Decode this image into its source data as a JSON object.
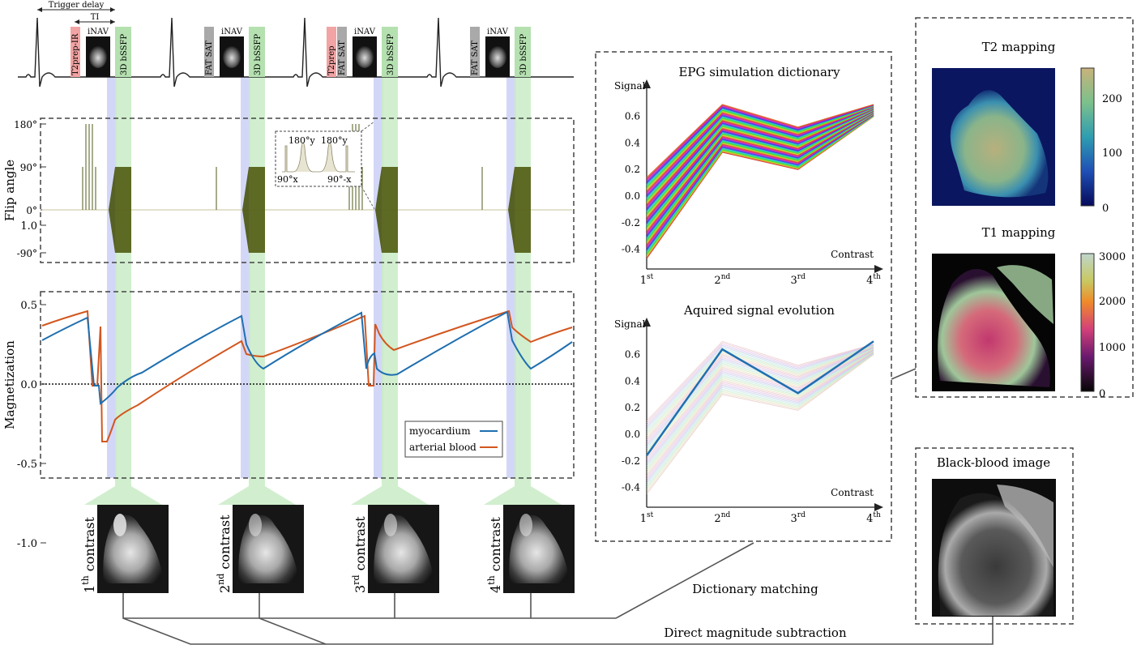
{
  "colors": {
    "myocardium": "#1f6fb0",
    "arterial_blood": "#d2571f",
    "t2prep": "#f2a3a3",
    "fatsat": "#a9a9a9",
    "bssfp": "#b5e0b0",
    "inav": "#111111",
    "rf_pulse": "#4f5b18",
    "blue_band": "#c8cdf5",
    "green_band": "#c9ecc5"
  },
  "sequence": {
    "trigger_delay_label": "Trigger delay",
    "ti_label": "TI",
    "beats": [
      {
        "prep_blocks": [
          {
            "label": "T2prep-IR",
            "kind": "t2prep"
          }
        ],
        "inav": "iNAV",
        "readout": "3D bSSFP"
      },
      {
        "prep_blocks": [
          {
            "label": "FAT SAT",
            "kind": "fatsat"
          }
        ],
        "inav": "iNAV",
        "readout": "3D bSSFP"
      },
      {
        "prep_blocks": [
          {
            "label": "T2prep",
            "kind": "t2prep"
          },
          {
            "label": "FAT SAT",
            "kind": "fatsat"
          }
        ],
        "inav": "iNAV",
        "readout": "3D bSSFP"
      },
      {
        "prep_blocks": [
          {
            "label": "FAT SAT",
            "kind": "fatsat"
          }
        ],
        "inav": "iNAV",
        "readout": "3D bSSFP"
      }
    ]
  },
  "flip_panel": {
    "ylabel": "Flip angle",
    "ticks": [
      "180°",
      "90°",
      "0°",
      "-90°"
    ],
    "inset": {
      "y1": "180°y",
      "y2": "180°y",
      "x1": "90°x",
      "x2": "90°-x"
    }
  },
  "magnetization_panel": {
    "ylabel": "Magnetization",
    "ticks": [
      "1.0",
      "0.5",
      "0.0",
      "-0.5",
      "-1.0"
    ],
    "legend": [
      "myocardium",
      "arterial blood"
    ]
  },
  "contrast_images": [
    {
      "num": "1",
      "sup": "th",
      "word": "contrast"
    },
    {
      "num": "2",
      "sup": "nd",
      "word": "contrast"
    },
    {
      "num": "3",
      "sup": "rd",
      "word": "contrast"
    },
    {
      "num": "4",
      "sup": "th",
      "word": "contrast"
    }
  ],
  "chart_data": [
    {
      "type": "line",
      "title": "EPG simulation dictionary",
      "xlabel": "Contrast",
      "ylabel": "Signal",
      "categories": [
        "1st",
        "2nd",
        "3rd",
        "4th"
      ],
      "category_parts": [
        [
          "1",
          "st"
        ],
        [
          "2",
          "nd"
        ],
        [
          "3",
          "rd"
        ],
        [
          "4",
          "th"
        ]
      ],
      "yticks": [
        "0.6",
        "0.4",
        "0.2",
        "0.0",
        "-0.2",
        "-0.4"
      ],
      "ylim": [
        -0.5,
        0.72
      ],
      "series_envelope": {
        "count": 60,
        "first": [
          -0.47,
          0.33,
          0.2,
          0.6
        ],
        "last": [
          0.14,
          0.69,
          0.52,
          0.69
        ]
      }
    },
    {
      "type": "line",
      "title": "Aquired signal evolution",
      "xlabel": "Contrast",
      "ylabel": "Signal",
      "categories": [
        "1st",
        "2nd",
        "3rd",
        "4th"
      ],
      "category_parts": [
        [
          "1",
          "st"
        ],
        [
          "2",
          "nd"
        ],
        [
          "3",
          "rd"
        ],
        [
          "4",
          "th"
        ]
      ],
      "yticks": [
        "0.6",
        "0.4",
        "0.2",
        "0.0",
        "-0.2",
        "-0.4"
      ],
      "ylim": [
        -0.5,
        0.72
      ],
      "measured": [
        -0.16,
        0.64,
        0.31,
        0.7
      ],
      "background_envelope": {
        "count": 40,
        "first": [
          -0.45,
          0.3,
          0.18,
          0.6
        ],
        "last": [
          0.1,
          0.7,
          0.52,
          0.68
        ]
      }
    }
  ],
  "t2_map": {
    "title": "T2 mapping",
    "colorbar_ticks": [
      "200",
      "100",
      "0"
    ]
  },
  "t1_map": {
    "title": "T1 mapping",
    "colorbar_ticks": [
      "3000",
      "2000",
      "1000",
      "0"
    ]
  },
  "blackblood": {
    "title": "Black-blood image"
  },
  "labels": {
    "dictionary_matching": "Dictionary matching",
    "direct_subtraction": "Direct magnitude subtraction"
  }
}
